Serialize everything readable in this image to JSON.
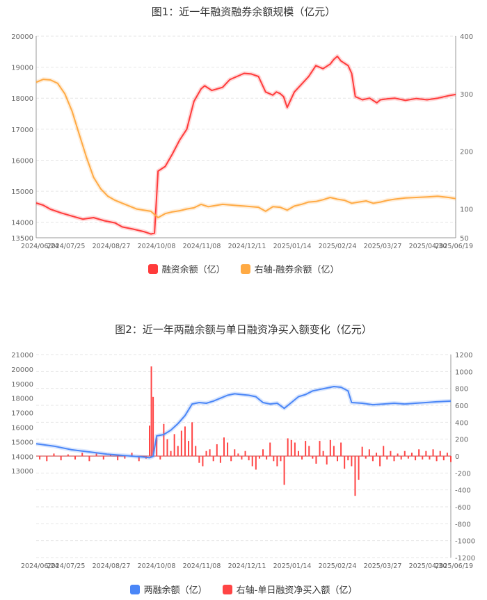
{
  "chart_data": [
    {
      "type": "line",
      "title": "图1：近一年融资融券余额规模（亿元）",
      "x_ticks": [
        "2024/06/24",
        "2024/07/25",
        "2024/08/27",
        "2024/10/08",
        "2024/11/08",
        "2024/12/11",
        "2025/01/14",
        "2025/02/24",
        "2025/03/27",
        "2025/04/30",
        "2025/06/19"
      ],
      "left_axis": {
        "min": 13500,
        "max": 20000,
        "ticks": [
          13500,
          14000,
          15000,
          16000,
          17000,
          18000,
          19000,
          20000
        ]
      },
      "right_axis": {
        "min": 50,
        "max": 400,
        "ticks": [
          50,
          100,
          200,
          300,
          400
        ]
      },
      "grid": true,
      "legend_position": "bottom",
      "series": [
        {
          "name": "融资余额（亿）",
          "axis": "left",
          "color": "#ff3b3b",
          "points": [
            [
              0,
              14620
            ],
            [
              0.02,
              14550
            ],
            [
              0.04,
              14420
            ],
            [
              0.07,
              14300
            ],
            [
              0.1,
              14200
            ],
            [
              0.13,
              14100
            ],
            [
              0.16,
              14150
            ],
            [
              0.19,
              14050
            ],
            [
              0.22,
              13980
            ],
            [
              0.24,
              13850
            ],
            [
              0.27,
              13780
            ],
            [
              0.3,
              13700
            ],
            [
              0.32,
              13620
            ],
            [
              0.33,
              13650
            ],
            [
              0.34,
              15650
            ],
            [
              0.36,
              15800
            ],
            [
              0.38,
              16200
            ],
            [
              0.4,
              16650
            ],
            [
              0.42,
              17000
            ],
            [
              0.44,
              17900
            ],
            [
              0.46,
              18300
            ],
            [
              0.47,
              18400
            ],
            [
              0.49,
              18250
            ],
            [
              0.52,
              18350
            ],
            [
              0.54,
              18600
            ],
            [
              0.56,
              18700
            ],
            [
              0.58,
              18800
            ],
            [
              0.6,
              18780
            ],
            [
              0.62,
              18700
            ],
            [
              0.64,
              18200
            ],
            [
              0.66,
              18100
            ],
            [
              0.67,
              18200
            ],
            [
              0.68,
              18150
            ],
            [
              0.69,
              18050
            ],
            [
              0.7,
              17700
            ],
            [
              0.72,
              18200
            ],
            [
              0.74,
              18450
            ],
            [
              0.76,
              18700
            ],
            [
              0.78,
              19050
            ],
            [
              0.8,
              18950
            ],
            [
              0.82,
              19100
            ],
            [
              0.83,
              19250
            ],
            [
              0.84,
              19350
            ],
            [
              0.85,
              19200
            ],
            [
              0.87,
              19050
            ],
            [
              0.88,
              18800
            ],
            [
              0.89,
              18050
            ],
            [
              0.91,
              17950
            ],
            [
              0.93,
              18000
            ],
            [
              0.95,
              17850
            ],
            [
              0.96,
              17950
            ],
            [
              0.98,
              17980
            ],
            [
              1.0,
              18000
            ],
            [
              1.03,
              17930
            ],
            [
              1.06,
              17990
            ],
            [
              1.09,
              17950
            ],
            [
              1.12,
              18000
            ],
            [
              1.15,
              18080
            ],
            [
              1.17,
              18120
            ]
          ],
          "x_unit": "fraction of date range"
        },
        {
          "name": "右轴-融券余额（亿）",
          "axis": "right",
          "color": "#ffaa44",
          "points": [
            [
              0,
              320
            ],
            [
              0.02,
              325
            ],
            [
              0.04,
              324
            ],
            [
              0.06,
              318
            ],
            [
              0.08,
              300
            ],
            [
              0.1,
              270
            ],
            [
              0.12,
              230
            ],
            [
              0.14,
              190
            ],
            [
              0.16,
              155
            ],
            [
              0.18,
              135
            ],
            [
              0.2,
              122
            ],
            [
              0.22,
              115
            ],
            [
              0.24,
              110
            ],
            [
              0.26,
              105
            ],
            [
              0.28,
              100
            ],
            [
              0.3,
              98
            ],
            [
              0.32,
              96
            ],
            [
              0.34,
              85
            ],
            [
              0.36,
              92
            ],
            [
              0.38,
              95
            ],
            [
              0.4,
              97
            ],
            [
              0.42,
              100
            ],
            [
              0.44,
              102
            ],
            [
              0.46,
              108
            ],
            [
              0.48,
              104
            ],
            [
              0.5,
              106
            ],
            [
              0.52,
              108
            ],
            [
              0.54,
              107
            ],
            [
              0.56,
              106
            ],
            [
              0.58,
              105
            ],
            [
              0.6,
              104
            ],
            [
              0.62,
              103
            ],
            [
              0.64,
              96
            ],
            [
              0.66,
              104
            ],
            [
              0.68,
              103
            ],
            [
              0.7,
              98
            ],
            [
              0.72,
              105
            ],
            [
              0.74,
              108
            ],
            [
              0.76,
              112
            ],
            [
              0.78,
              113
            ],
            [
              0.8,
              116
            ],
            [
              0.82,
              120
            ],
            [
              0.84,
              117
            ],
            [
              0.86,
              115
            ],
            [
              0.88,
              110
            ],
            [
              0.9,
              112
            ],
            [
              0.92,
              114
            ],
            [
              0.94,
              110
            ],
            [
              0.96,
              112
            ],
            [
              0.98,
              115
            ],
            [
              1.0,
              117
            ],
            [
              1.03,
              119
            ],
            [
              1.06,
              120
            ],
            [
              1.09,
              121
            ],
            [
              1.12,
              122
            ],
            [
              1.15,
              120
            ],
            [
              1.17,
              118
            ]
          ],
          "x_unit": "fraction of date range"
        }
      ]
    },
    {
      "type": "line+bar",
      "title": "图2：近一年两融余额与单日融资净买入额变化（亿元）",
      "x_ticks": [
        "2024/06/24",
        "2024/07/25",
        "2024/08/27",
        "2024/10/08",
        "2024/11/08",
        "2024/12/11",
        "2025/01/14",
        "2025/02/24",
        "2025/03/27",
        "2025/04/30",
        "2025/06/19"
      ],
      "left_axis": {
        "ticks": [
          13000,
          14000,
          15000,
          16000,
          17000,
          18000,
          19000,
          20000,
          21000
        ]
      },
      "right_axis": {
        "min": -1200,
        "max": 1200,
        "ticks": [
          -1200,
          -1000,
          -800,
          -600,
          -400,
          -200,
          0,
          200,
          400,
          600,
          800,
          1000,
          1200
        ]
      },
      "grid": true,
      "legend_position": "bottom",
      "series": [
        {
          "name": "两融余额（亿）",
          "axis": "left",
          "color": "#4a86f7"
        },
        {
          "name": "右轴-单日融资净买入额（亿）",
          "axis": "right",
          "color": "#ff4444",
          "bars_note": "daily net buy values; spikes around 2024/10/08 reaching about 1060"
        }
      ],
      "balance_points": [
        [
          0,
          14860
        ],
        [
          0.05,
          14700
        ],
        [
          0.1,
          14450
        ],
        [
          0.15,
          14300
        ],
        [
          0.2,
          14150
        ],
        [
          0.25,
          14050
        ],
        [
          0.3,
          13950
        ],
        [
          0.32,
          13900
        ],
        [
          0.33,
          14000
        ],
        [
          0.34,
          15400
        ],
        [
          0.36,
          15500
        ],
        [
          0.38,
          15800
        ],
        [
          0.4,
          16250
        ],
        [
          0.42,
          16800
        ],
        [
          0.44,
          17600
        ],
        [
          0.46,
          17700
        ],
        [
          0.48,
          17650
        ],
        [
          0.5,
          17800
        ],
        [
          0.52,
          18000
        ],
        [
          0.54,
          18200
        ],
        [
          0.56,
          18300
        ],
        [
          0.58,
          18250
        ],
        [
          0.6,
          18200
        ],
        [
          0.62,
          18100
        ],
        [
          0.64,
          17700
        ],
        [
          0.66,
          17600
        ],
        [
          0.68,
          17650
        ],
        [
          0.7,
          17300
        ],
        [
          0.72,
          17700
        ],
        [
          0.74,
          18100
        ],
        [
          0.76,
          18250
        ],
        [
          0.78,
          18500
        ],
        [
          0.8,
          18600
        ],
        [
          0.82,
          18700
        ],
        [
          0.84,
          18800
        ],
        [
          0.86,
          18750
        ],
        [
          0.88,
          18500
        ],
        [
          0.89,
          17700
        ],
        [
          0.92,
          17650
        ],
        [
          0.95,
          17550
        ],
        [
          0.98,
          17600
        ],
        [
          1.01,
          17650
        ],
        [
          1.04,
          17600
        ],
        [
          1.07,
          17650
        ],
        [
          1.1,
          17700
        ],
        [
          1.13,
          17750
        ],
        [
          1.17,
          17800
        ]
      ],
      "net_buy_bars": [
        [
          0.01,
          -40
        ],
        [
          0.03,
          -60
        ],
        [
          0.05,
          30
        ],
        [
          0.07,
          -50
        ],
        [
          0.09,
          20
        ],
        [
          0.11,
          -40
        ],
        [
          0.13,
          40
        ],
        [
          0.15,
          -60
        ],
        [
          0.17,
          30
        ],
        [
          0.19,
          -40
        ],
        [
          0.21,
          20
        ],
        [
          0.23,
          -50
        ],
        [
          0.25,
          -30
        ],
        [
          0.27,
          40
        ],
        [
          0.29,
          -60
        ],
        [
          0.31,
          -30
        ],
        [
          0.32,
          360
        ],
        [
          0.325,
          1060
        ],
        [
          0.33,
          700
        ],
        [
          0.34,
          220
        ],
        [
          0.35,
          -40
        ],
        [
          0.36,
          380
        ],
        [
          0.37,
          200
        ],
        [
          0.38,
          60
        ],
        [
          0.39,
          260
        ],
        [
          0.4,
          120
        ],
        [
          0.41,
          300
        ],
        [
          0.42,
          350
        ],
        [
          0.43,
          180
        ],
        [
          0.44,
          400
        ],
        [
          0.45,
          120
        ],
        [
          0.46,
          -80
        ],
        [
          0.47,
          -120
        ],
        [
          0.48,
          60
        ],
        [
          0.49,
          80
        ],
        [
          0.5,
          -60
        ],
        [
          0.51,
          140
        ],
        [
          0.52,
          -80
        ],
        [
          0.53,
          220
        ],
        [
          0.54,
          160
        ],
        [
          0.55,
          -60
        ],
        [
          0.56,
          80
        ],
        [
          0.57,
          30
        ],
        [
          0.58,
          -40
        ],
        [
          0.59,
          60
        ],
        [
          0.6,
          -50
        ],
        [
          0.61,
          -120
        ],
        [
          0.62,
          -160
        ],
        [
          0.63,
          -30
        ],
        [
          0.64,
          80
        ],
        [
          0.65,
          -40
        ],
        [
          0.66,
          160
        ],
        [
          0.67,
          -60
        ],
        [
          0.68,
          -120
        ],
        [
          0.69,
          -60
        ],
        [
          0.7,
          -340
        ],
        [
          0.71,
          210
        ],
        [
          0.72,
          190
        ],
        [
          0.73,
          160
        ],
        [
          0.74,
          60
        ],
        [
          0.75,
          -40
        ],
        [
          0.76,
          180
        ],
        [
          0.77,
          120
        ],
        [
          0.78,
          -30
        ],
        [
          0.79,
          -90
        ],
        [
          0.8,
          180
        ],
        [
          0.81,
          60
        ],
        [
          0.82,
          -100
        ],
        [
          0.83,
          190
        ],
        [
          0.84,
          120
        ],
        [
          0.85,
          -60
        ],
        [
          0.86,
          160
        ],
        [
          0.87,
          -150
        ],
        [
          0.88,
          -50
        ],
        [
          0.89,
          -120
        ],
        [
          0.9,
          -470
        ],
        [
          0.91,
          -280
        ],
        [
          0.92,
          110
        ],
        [
          0.93,
          -30
        ],
        [
          0.94,
          80
        ],
        [
          0.95,
          -60
        ],
        [
          0.96,
          40
        ],
        [
          0.97,
          -120
        ],
        [
          0.98,
          120
        ],
        [
          0.99,
          -40
        ],
        [
          1.0,
          60
        ],
        [
          1.01,
          -60
        ],
        [
          1.02,
          30
        ],
        [
          1.03,
          -40
        ],
        [
          1.04,
          60
        ],
        [
          1.05,
          -30
        ],
        [
          1.06,
          40
        ],
        [
          1.07,
          -50
        ],
        [
          1.08,
          80
        ],
        [
          1.09,
          -40
        ],
        [
          1.1,
          60
        ],
        [
          1.11,
          -40
        ],
        [
          1.12,
          80
        ],
        [
          1.13,
          -60
        ],
        [
          1.14,
          60
        ],
        [
          1.15,
          -50
        ],
        [
          1.16,
          40
        ],
        [
          1.17,
          -70
        ]
      ]
    }
  ],
  "chart1": {
    "title": "图1：近一年融资融券余额规模（亿元）",
    "legend": [
      {
        "label": "融资余额（亿）",
        "color": "#ff3b3b"
      },
      {
        "label": "右轴-融券余额（亿）",
        "color": "#ffaa44"
      }
    ]
  },
  "chart2": {
    "title": "图2：近一年两融余额与单日融资净买入额变化（亿元）",
    "legend": [
      {
        "label": "两融余额（亿）",
        "color": "#4a86f7"
      },
      {
        "label": "右轴-单日融资净买入额（亿）",
        "color": "#ff4444"
      }
    ]
  }
}
